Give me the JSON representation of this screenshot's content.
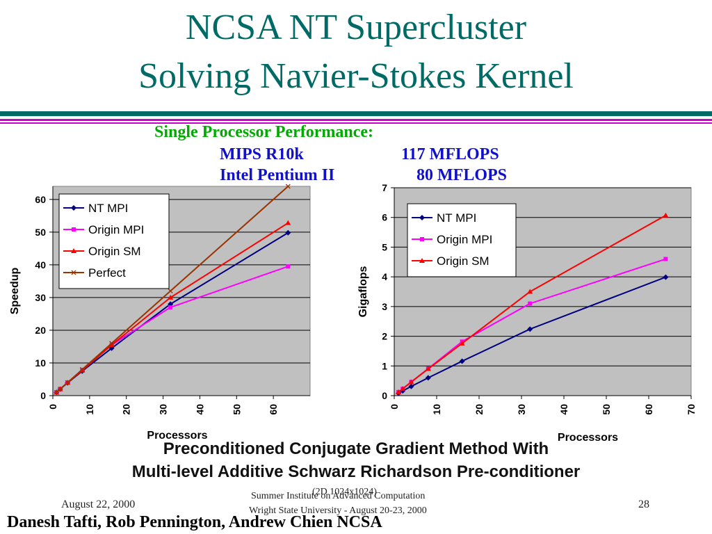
{
  "slide": {
    "title_line1": "NCSA NT Supercluster",
    "title_line2": "Solving Navier-Stokes Kernel",
    "single_proc_heading": "Single Processor Performance:",
    "cpu1_name": "MIPS R10k",
    "cpu1_value": "117 MFLOPS",
    "cpu2_name": "Intel Pentium II",
    "cpu2_value": "80 MFLOPS",
    "caption_line1": "Preconditioned Conjugate Gradient Method With",
    "caption_line2": "Multi-level Additive Schwarz Richardson Pre-conditioner",
    "footer_problem": "(2D 1024x1024)",
    "footer_date": "August 22, 2000",
    "footer_institute_line1": "Summer Institute on Advanced Computation",
    "footer_institute_line2": "Wright State University - August 20-23, 2000",
    "page_number": "28",
    "authors": "Danesh Tafti, Rob Pennington, Andrew Chien NCSA",
    "colors": {
      "title": "#006b66",
      "heading": "#00aa00",
      "cpu_text": "#1111cc",
      "rule_teal": "#006b66",
      "rule_magenta": "#cc00cc"
    }
  },
  "chart_data": [
    {
      "type": "line",
      "xlabel": "Processors",
      "ylabel": "Speedup",
      "xlim": [
        0,
        70
      ],
      "ylim": [
        0,
        64
      ],
      "xticks": [
        0,
        10,
        20,
        30,
        40,
        50,
        60
      ],
      "yticks": [
        0,
        10,
        20,
        30,
        40,
        50,
        60
      ],
      "grid": "horizontal",
      "legend_position": "top-left",
      "series": [
        {
          "name": "NT MPI",
          "color": "#000080",
          "marker": "diamond",
          "x": [
            1,
            2,
            4,
            8,
            16,
            32,
            64
          ],
          "y": [
            1,
            2,
            3.9,
            7.5,
            14.5,
            28,
            49.8
          ]
        },
        {
          "name": "Origin MPI",
          "color": "#ff00ff",
          "marker": "square",
          "x": [
            1,
            2,
            4,
            8,
            16,
            32,
            64
          ],
          "y": [
            1,
            2,
            4,
            7.8,
            15.5,
            27,
            39.5
          ]
        },
        {
          "name": "Origin SM",
          "color": "#ff0000",
          "marker": "triangle",
          "x": [
            1,
            2,
            4,
            8,
            16,
            32,
            64
          ],
          "y": [
            1,
            2,
            4,
            7.7,
            15.5,
            30,
            52.8
          ]
        },
        {
          "name": "Perfect",
          "color": "#993300",
          "marker": "x",
          "x": [
            1,
            2,
            4,
            8,
            16,
            32,
            64
          ],
          "y": [
            1,
            2,
            4,
            8,
            16,
            32,
            64
          ]
        }
      ]
    },
    {
      "type": "line",
      "xlabel": "Processors",
      "ylabel": "Gigaflops",
      "xlim": [
        0,
        70
      ],
      "ylim": [
        0,
        7
      ],
      "xticks": [
        0,
        10,
        20,
        30,
        40,
        50,
        60,
        70
      ],
      "yticks": [
        0,
        1,
        2,
        3,
        4,
        5,
        6,
        7
      ],
      "grid": "horizontal",
      "legend_position": "top-left",
      "series": [
        {
          "name": "NT MPI",
          "color": "#000080",
          "marker": "diamond",
          "x": [
            1,
            2,
            4,
            8,
            16,
            32,
            64
          ],
          "y": [
            0.08,
            0.16,
            0.31,
            0.6,
            1.16,
            2.24,
            3.99
          ]
        },
        {
          "name": "Origin MPI",
          "color": "#ff00ff",
          "marker": "square",
          "x": [
            1,
            2,
            4,
            8,
            16,
            32,
            64
          ],
          "y": [
            0.12,
            0.23,
            0.46,
            0.91,
            1.82,
            3.1,
            4.6
          ]
        },
        {
          "name": "Origin SM",
          "color": "#ff0000",
          "marker": "triangle",
          "x": [
            1,
            2,
            4,
            8,
            16,
            32,
            64
          ],
          "y": [
            0.12,
            0.23,
            0.46,
            0.9,
            1.76,
            3.5,
            6.07
          ]
        }
      ]
    }
  ]
}
